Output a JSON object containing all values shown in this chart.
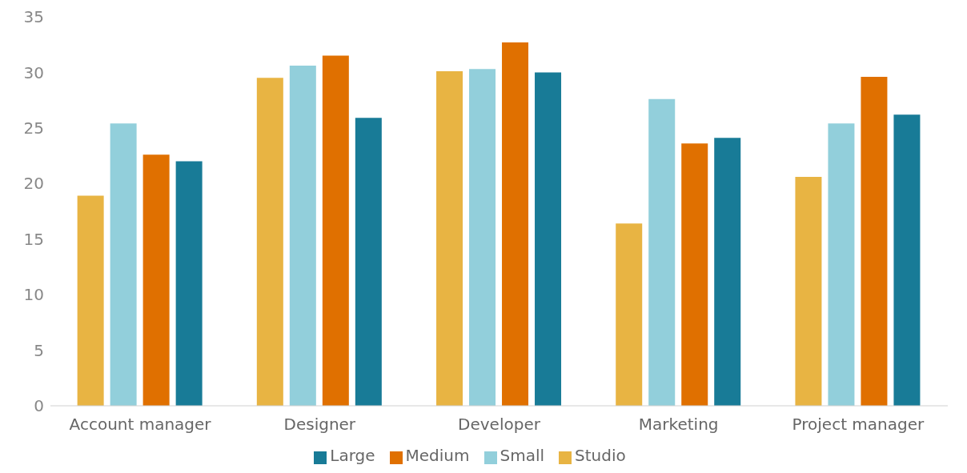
{
  "chart_data": {
    "type": "bar",
    "categories": [
      "Account manager",
      "Designer",
      "Developer",
      "Marketing",
      "Project manager"
    ],
    "series": [
      {
        "name": "Studio",
        "color": "#e8b443",
        "values": [
          18.9,
          29.5,
          30.1,
          16.4,
          20.6
        ]
      },
      {
        "name": "Small",
        "color": "#92cfdb",
        "values": [
          25.4,
          30.6,
          30.3,
          27.6,
          25.4
        ]
      },
      {
        "name": "Medium",
        "color": "#e07000",
        "values": [
          22.6,
          31.5,
          32.7,
          23.6,
          29.6
        ]
      },
      {
        "name": "Large",
        "color": "#187b97",
        "values": [
          22.0,
          25.9,
          30.0,
          24.1,
          26.2
        ]
      }
    ],
    "ylim": [
      0,
      35
    ],
    "yticks": [
      0,
      5,
      10,
      15,
      20,
      25,
      30,
      35
    ],
    "grid": false,
    "legend": "bottom"
  }
}
